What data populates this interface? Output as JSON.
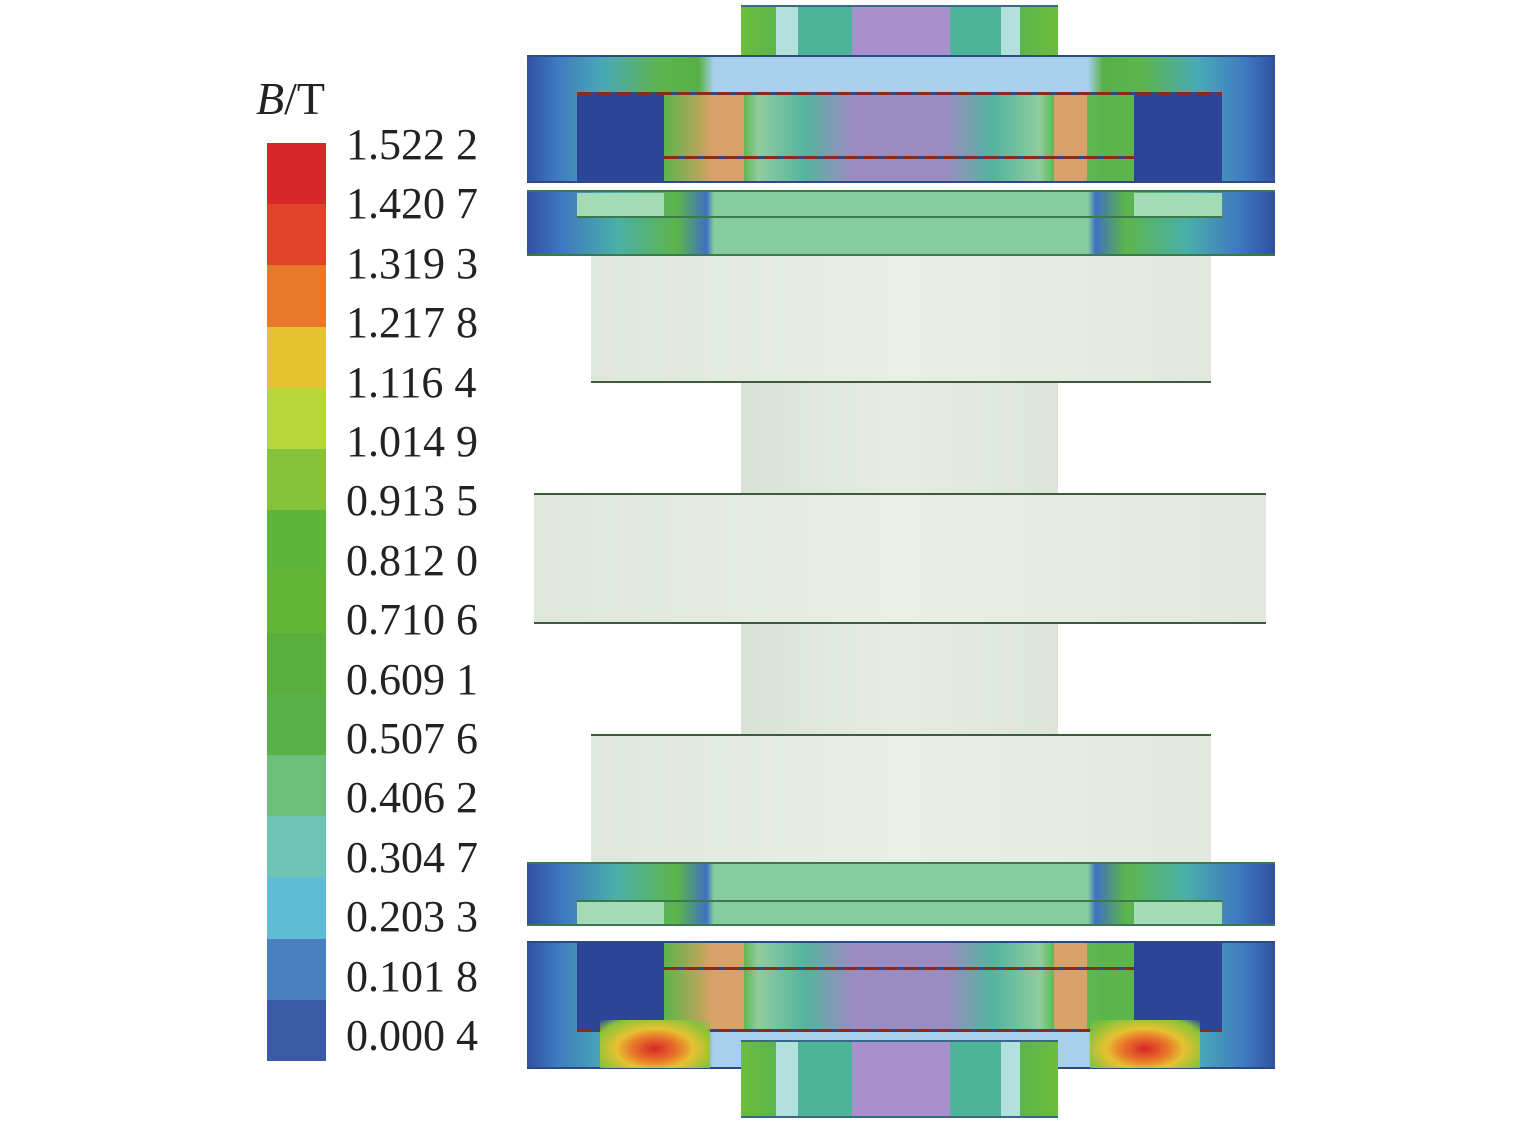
{
  "legend": {
    "title_var": "B",
    "title_unit": "/T",
    "labels": [
      "1.522 2",
      "1.420 7",
      "1.319 3",
      "1.217 8",
      "1.116 4",
      "1.014 9",
      "0.913 5",
      "0.812 0",
      "0.710 6",
      "0.609 1",
      "0.507 6",
      "0.406 2",
      "0.304 7",
      "0.203 3",
      "0.101 8",
      "0.000 4"
    ],
    "colors": [
      "#d92628",
      "#e04428",
      "#e8782a",
      "#e6c232",
      "#b8d638",
      "#88c23a",
      "#5eb53a",
      "#62b535",
      "#5aaf3c",
      "#58b048",
      "#6cc07a",
      "#6ec4b4",
      "#5ebcd6",
      "#4a80c0",
      "#3a5aa8",
      "#2e4597"
    ]
  }
}
